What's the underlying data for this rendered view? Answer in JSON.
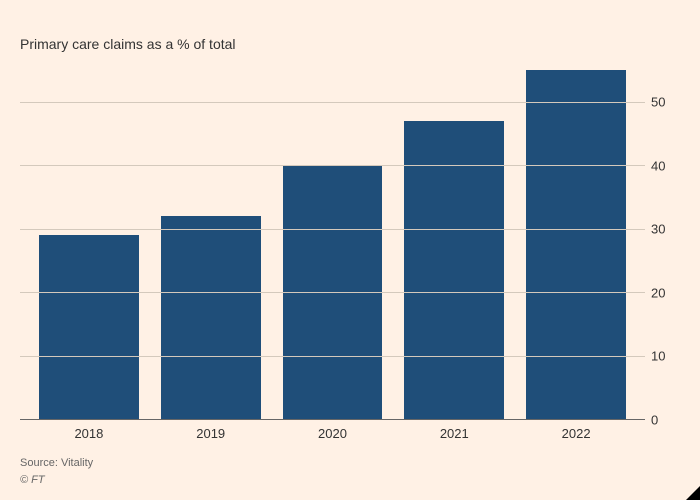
{
  "chart": {
    "type": "bar",
    "title": "",
    "subtitle": "Primary care claims as a % of total",
    "categories": [
      "2018",
      "2019",
      "2020",
      "2021",
      "2022"
    ],
    "values": [
      29,
      32,
      40,
      47,
      55
    ],
    "bar_color": "#1f4e79",
    "background_color": "#fff1e5",
    "grid_color": "#d4c9bc",
    "zero_line_color": "#666666",
    "ylim": [
      0,
      56
    ],
    "yticks": [
      0,
      10,
      20,
      30,
      40,
      50
    ],
    "title_fontsize": 18,
    "subtitle_fontsize": 14,
    "tick_fontsize": 13,
    "footer_fontsize": 11,
    "bar_width_ratio": 0.82
  },
  "source": "Source: Vitality",
  "copyright": "© FT"
}
